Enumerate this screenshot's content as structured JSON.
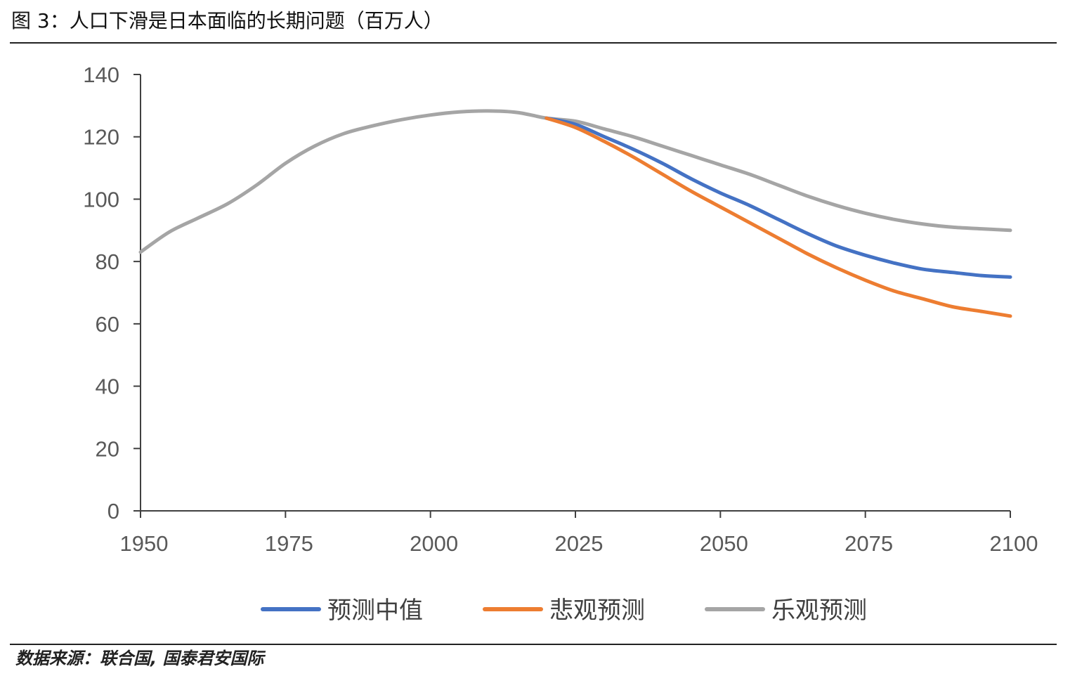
{
  "figure": {
    "title": "图 3：人口下滑是日本面临的长期问题（百万人）",
    "source": "数据来源：联合国, 国泰君安国际"
  },
  "chart_data": {
    "type": "line",
    "title": "人口下滑是日本面临的长期问题（百万人）",
    "xlabel": "",
    "ylabel": "",
    "xlim": [
      1950,
      2100
    ],
    "ylim": [
      0,
      140
    ],
    "x_ticks": [
      1950,
      1975,
      2000,
      2025,
      2050,
      2075,
      2100
    ],
    "y_ticks": [
      0,
      20,
      40,
      60,
      80,
      100,
      120,
      140
    ],
    "legend_position": "bottom",
    "grid": false,
    "series": [
      {
        "name": "乐观预测",
        "color": "#a5a5a5",
        "x": [
          1950,
          1955,
          1960,
          1965,
          1970,
          1975,
          1980,
          1985,
          1990,
          1995,
          2000,
          2005,
          2010,
          2015,
          2020,
          2025,
          2030,
          2035,
          2040,
          2045,
          2050,
          2055,
          2060,
          2065,
          2070,
          2075,
          2080,
          2085,
          2090,
          2095,
          2100
        ],
        "y": [
          83,
          89.5,
          94,
          98.5,
          104.5,
          111.5,
          117,
          121,
          123.5,
          125.5,
          127,
          128,
          128.3,
          127.8,
          126,
          125,
          122.5,
          120,
          117,
          114,
          111,
          108,
          104.5,
          101,
          98,
          95.5,
          93.5,
          92,
          91,
          90.5,
          90
        ]
      },
      {
        "name": "预测中值",
        "color": "#4472c4",
        "x": [
          2020,
          2025,
          2030,
          2035,
          2040,
          2045,
          2050,
          2055,
          2060,
          2065,
          2070,
          2075,
          2080,
          2085,
          2090,
          2095,
          2100
        ],
        "y": [
          126,
          124,
          120,
          116,
          111.5,
          106.5,
          102,
          98,
          93.5,
          89,
          85,
          82,
          79.5,
          77.5,
          76.5,
          75.5,
          75
        ]
      },
      {
        "name": "悲观预测",
        "color": "#ed7d31",
        "x": [
          2020,
          2025,
          2030,
          2035,
          2040,
          2045,
          2050,
          2055,
          2060,
          2065,
          2070,
          2075,
          2080,
          2085,
          2090,
          2095,
          2100
        ],
        "y": [
          126,
          123,
          118.5,
          113.5,
          108,
          102.5,
          97.5,
          92.5,
          87.5,
          82.5,
          78,
          74,
          70.5,
          68,
          65.5,
          64,
          62.5
        ]
      }
    ],
    "legend": [
      "预测中值",
      "悲观预测",
      "乐观预测"
    ]
  }
}
